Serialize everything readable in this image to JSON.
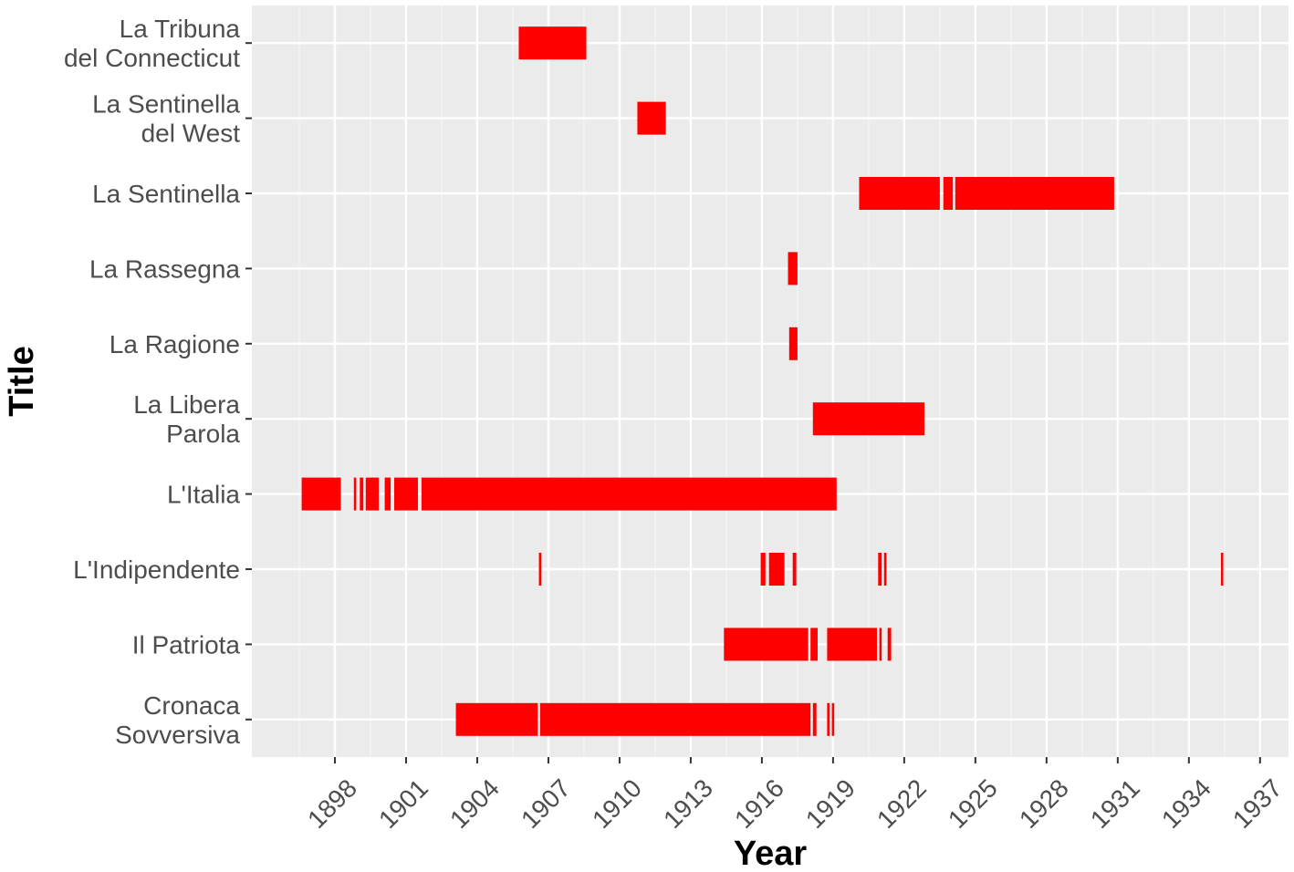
{
  "chart_data": {
    "type": "bar",
    "orientation": "horizontal-timeline",
    "xlabel": "Year",
    "ylabel": "Title",
    "xlim": [
      1894.5,
      1938.2
    ],
    "x_ticks": [
      1898,
      1901,
      1904,
      1907,
      1910,
      1913,
      1916,
      1919,
      1922,
      1925,
      1928,
      1931,
      1934,
      1937
    ],
    "grid": true,
    "categories": [
      [
        "La Tribuna",
        "del Connecticut"
      ],
      [
        "La Sentinella",
        "del West"
      ],
      [
        "La Sentinella"
      ],
      [
        "La Rassegna"
      ],
      [
        "La Ragione"
      ],
      [
        "La Libera",
        "Parola"
      ],
      [
        "L'Italia"
      ],
      [
        "L'Indipendente"
      ],
      [
        "Il Patriota"
      ],
      [
        "Cronaca",
        "Sovversiva"
      ]
    ],
    "series": [
      {
        "values": [
          [
            [
              1905.75,
              1908.6
            ]
          ],
          [
            [
              1910.75,
              1911.95
            ]
          ],
          [
            [
              1920.1,
              1923.5
            ],
            [
              1923.65,
              1924.05
            ],
            [
              1924.15,
              1930.85
            ]
          ],
          [
            [
              1917.1,
              1917.5
            ]
          ],
          [
            [
              1917.15,
              1917.5
            ]
          ],
          [
            [
              1918.15,
              1922.85
            ]
          ],
          [
            [
              1896.6,
              1898.25
            ],
            [
              1898.8,
              1898.9
            ],
            [
              1899.05,
              1899.2
            ],
            [
              1899.3,
              1899.85
            ],
            [
              1900.1,
              1900.35
            ],
            [
              1900.5,
              1901.5
            ],
            [
              1901.65,
              1919.15
            ]
          ],
          [
            [
              1906.6,
              1906.7
            ],
            [
              1915.95,
              1916.15
            ],
            [
              1916.3,
              1916.95
            ],
            [
              1917.3,
              1917.45
            ],
            [
              1920.9,
              1921.05
            ],
            [
              1921.15,
              1921.25
            ],
            [
              1935.35,
              1935.45
            ]
          ],
          [
            [
              1914.4,
              1917.95
            ],
            [
              1918.05,
              1918.35
            ],
            [
              1918.75,
              1920.85
            ],
            [
              1920.95,
              1921.05
            ],
            [
              1921.3,
              1921.45
            ]
          ],
          [
            [
              1903.1,
              1906.55
            ],
            [
              1906.65,
              1918.05
            ],
            [
              1918.15,
              1918.3
            ],
            [
              1918.75,
              1918.85
            ],
            [
              1918.95,
              1919.05
            ]
          ]
        ]
      }
    ],
    "colors": {
      "bar": "#ff0000",
      "panel": "#ebebeb",
      "grid_major": "#ffffff",
      "grid_minor": "#f5f5f5",
      "tick_text": "#4d4d4d",
      "axis_title": "#000000"
    }
  }
}
